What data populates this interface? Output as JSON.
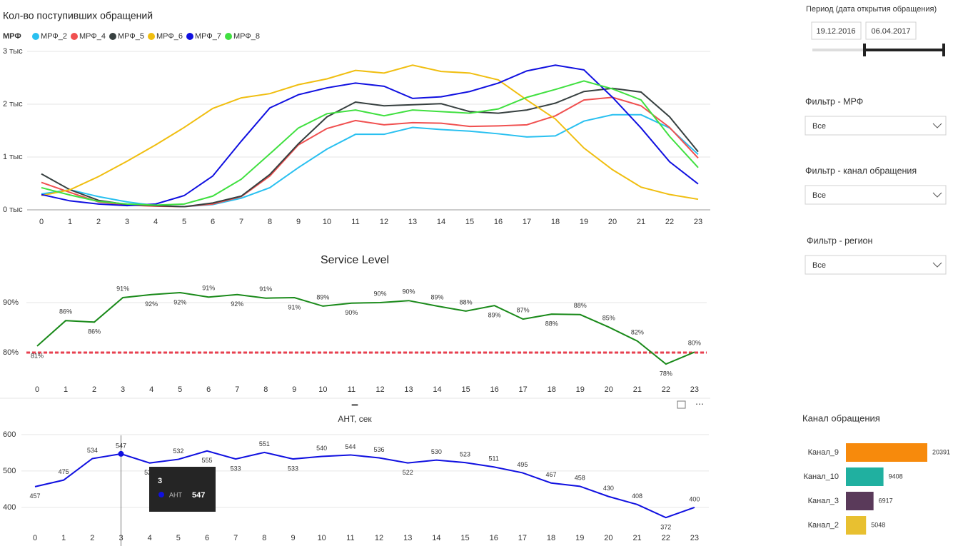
{
  "chart_data": [
    {
      "type": "line",
      "title": "Кол-во поступивших обращений",
      "legend_title": "МРФ",
      "categories": [
        0,
        1,
        2,
        3,
        4,
        5,
        6,
        7,
        8,
        9,
        10,
        11,
        12,
        13,
        14,
        15,
        16,
        17,
        18,
        19,
        20,
        21,
        22,
        23
      ],
      "ylim": [
        0,
        3000
      ],
      "yticks": [
        {
          "value": 0,
          "label": "0 тыс"
        },
        {
          "value": 1000,
          "label": "1 тыс"
        },
        {
          "value": 2000,
          "label": "2 тыс"
        },
        {
          "value": 3000,
          "label": "3 тыс"
        }
      ],
      "grid": true,
      "series": [
        {
          "name": "МРФ_2",
          "color": "#29c0f0",
          "values": [
            300,
            380,
            250,
            150,
            80,
            60,
            100,
            220,
            420,
            800,
            1150,
            1430,
            1430,
            1560,
            1520,
            1490,
            1440,
            1380,
            1400,
            1680,
            1800,
            1800,
            1550,
            1050
          ]
        },
        {
          "name": "МРФ_4",
          "color": "#f05050",
          "values": [
            520,
            330,
            150,
            90,
            70,
            60,
            110,
            250,
            640,
            1230,
            1540,
            1690,
            1610,
            1650,
            1640,
            1580,
            1590,
            1610,
            1780,
            2080,
            2130,
            1970,
            1560,
            980
          ]
        },
        {
          "name": "МРФ_5",
          "color": "#374040",
          "values": [
            680,
            380,
            180,
            100,
            80,
            60,
            130,
            260,
            670,
            1250,
            1760,
            2040,
            1970,
            1990,
            2010,
            1860,
            1830,
            1890,
            2020,
            2240,
            2300,
            2230,
            1760,
            1100
          ]
        },
        {
          "name": "МРФ_6",
          "color": "#f0be10",
          "values": [
            270,
            380,
            630,
            920,
            1230,
            1560,
            1920,
            2120,
            2200,
            2370,
            2480,
            2640,
            2590,
            2740,
            2620,
            2590,
            2460,
            2080,
            1720,
            1170,
            760,
            430,
            290,
            200
          ]
        },
        {
          "name": "МРФ_7",
          "color": "#1010e0",
          "values": [
            290,
            170,
            110,
            80,
            110,
            270,
            640,
            1300,
            1930,
            2180,
            2310,
            2400,
            2340,
            2110,
            2140,
            2240,
            2400,
            2630,
            2740,
            2650,
            2130,
            1550,
            910,
            490
          ]
        },
        {
          "name": "МРФ_8",
          "color": "#40e040",
          "values": [
            420,
            280,
            160,
            110,
            90,
            110,
            260,
            580,
            1060,
            1550,
            1820,
            1890,
            1780,
            1890,
            1860,
            1830,
            1910,
            2130,
            2280,
            2440,
            2290,
            2080,
            1390,
            800
          ]
        }
      ]
    },
    {
      "type": "line",
      "title": "Service Level",
      "categories": [
        0,
        1,
        2,
        3,
        4,
        5,
        6,
        7,
        8,
        9,
        10,
        11,
        12,
        13,
        14,
        15,
        16,
        17,
        18,
        19,
        20,
        21,
        22,
        23
      ],
      "ylim": [
        76,
        95
      ],
      "yticks": [
        {
          "value": 80,
          "label": "80%"
        },
        {
          "value": 90,
          "label": "90%"
        }
      ],
      "grid": true,
      "color": "#1a8a1a",
      "values": [
        81.3,
        86.4,
        86.1,
        91,
        91.6,
        92,
        91.1,
        91.6,
        90.9,
        91,
        89.3,
        89.9,
        90,
        90.4,
        89.3,
        88.3,
        89.4,
        86.7,
        87.7,
        87.6,
        85.1,
        82.3,
        77.7,
        80.1
      ],
      "value_labels": [
        "81%",
        "86%",
        "86%",
        "91%",
        "92%",
        "92%",
        "91%",
        "92%",
        "91%",
        "91%",
        "89%",
        "90%",
        "90%",
        "90%",
        "89%",
        "88%",
        "89%",
        "87%",
        "88%",
        "88%",
        "85%",
        "82%",
        "78%",
        "80%"
      ],
      "reference_line": 80,
      "reference_color": "#e84050"
    },
    {
      "type": "line",
      "title": "АНТ, сек",
      "categories": [
        0,
        1,
        2,
        3,
        4,
        5,
        6,
        7,
        8,
        9,
        10,
        11,
        12,
        13,
        14,
        15,
        16,
        17,
        18,
        19,
        20,
        21,
        22,
        23
      ],
      "ylim": [
        345,
        635
      ],
      "yticks": [
        400,
        500,
        600
      ],
      "grid": true,
      "series": [
        {
          "name": "АНТ",
          "color": "#1010e0",
          "values": [
            457,
            475,
            534,
            547,
            522,
            532,
            555,
            533,
            551,
            533,
            540,
            544,
            536,
            522,
            530,
            523,
            511,
            495,
            467,
            458,
            430,
            408,
            372,
            400
          ]
        }
      ],
      "tooltip_index": 3
    },
    {
      "type": "hbar",
      "title": "Канал обращения",
      "categories": [
        "Канал_9",
        "Канал_10",
        "Канал_3",
        "Канал_2"
      ],
      "values": [
        20391,
        9408,
        6917,
        5048
      ],
      "colors": [
        "#f78a0c",
        "#20b0a0",
        "#5a3a5a",
        "#e8c030"
      ]
    }
  ],
  "filters": {
    "period": {
      "label": "Период (дата открытия обращения)",
      "start": "19.12.2016",
      "end": "06.04.2017"
    },
    "dropdowns": [
      {
        "label": "Фильтр - МРФ",
        "value": "Все"
      },
      {
        "label": "Фильтр - канал обращения",
        "value": "Все"
      },
      {
        "label": "Фильтр - регион",
        "value": "Все"
      }
    ]
  }
}
